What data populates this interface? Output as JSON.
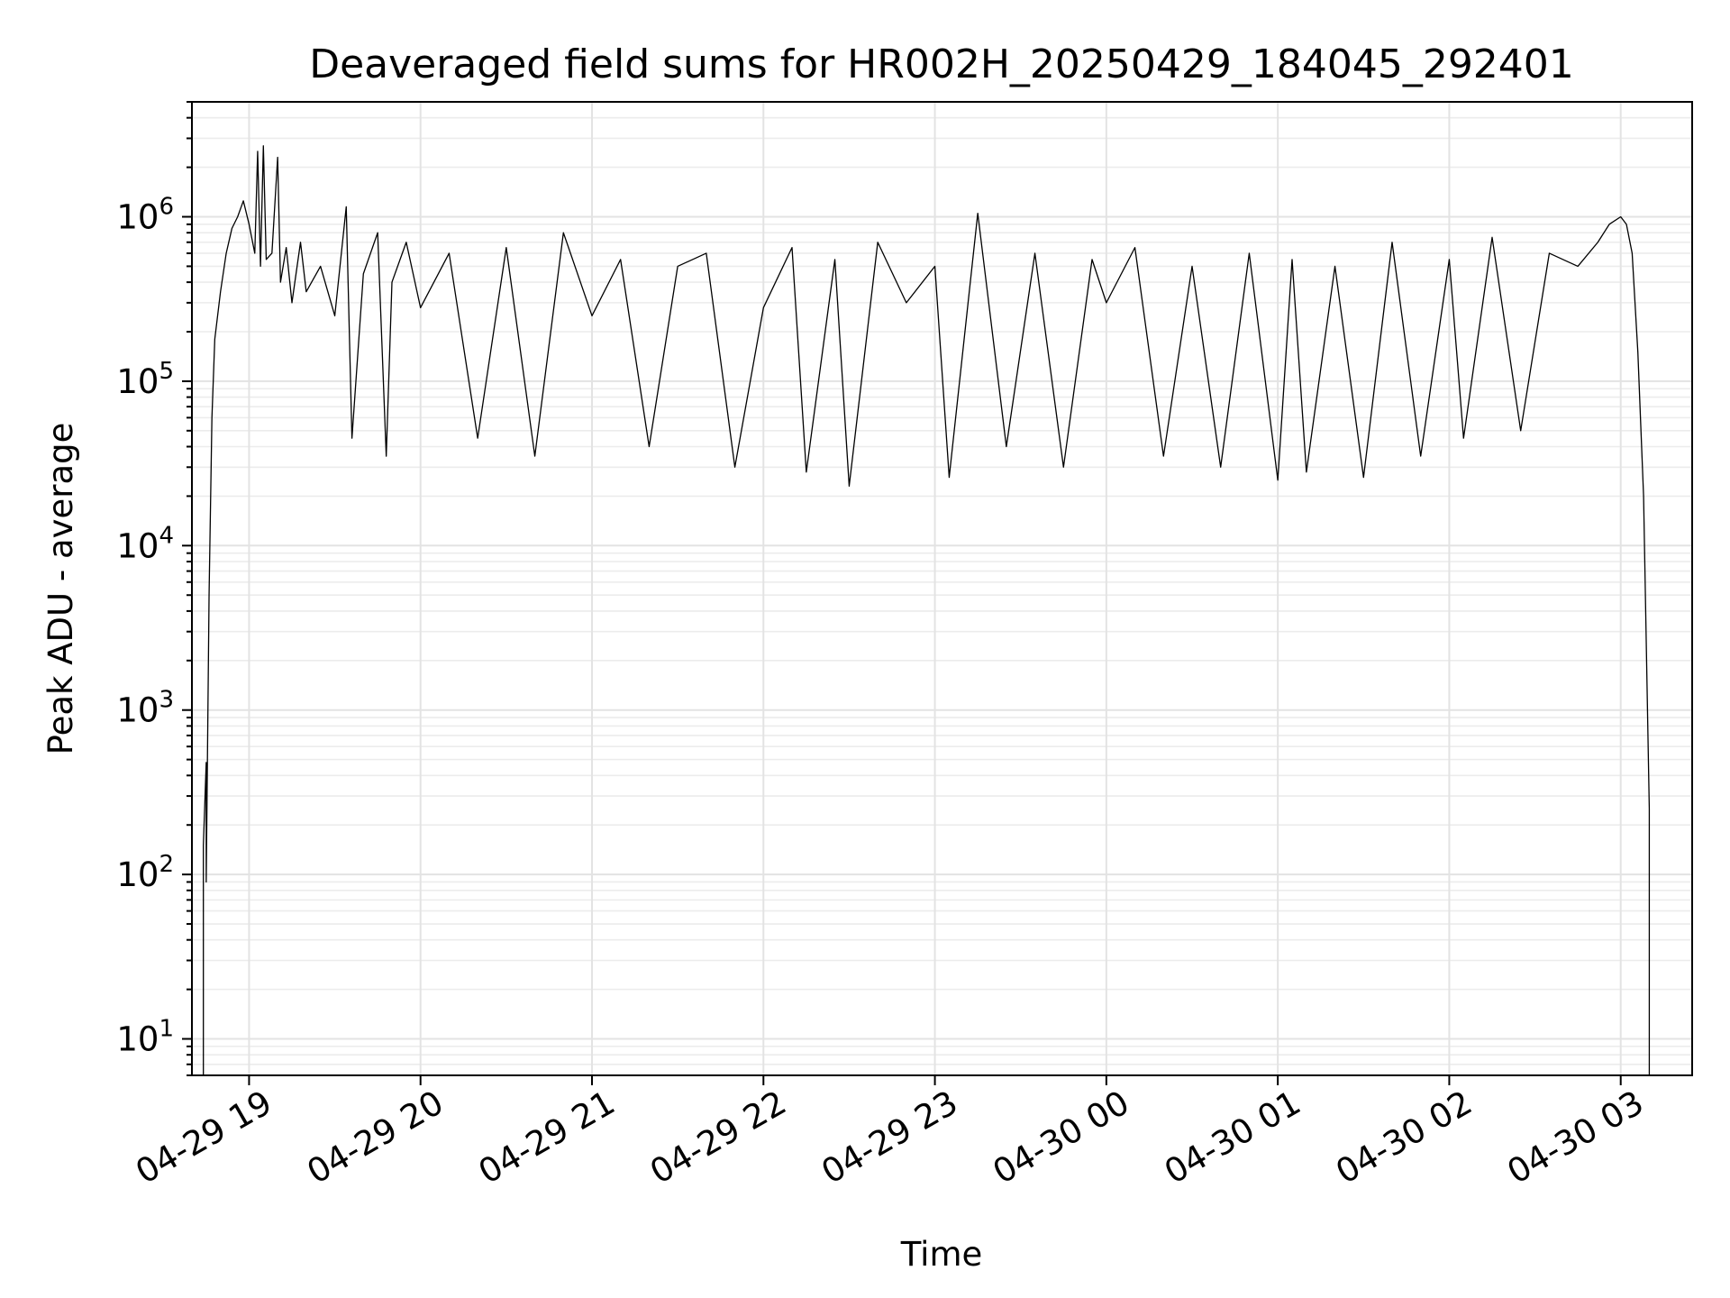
{
  "chart_data": {
    "type": "line",
    "title": "Deaveraged field sums for HR002H_20250429_184045_292401",
    "xlabel": "Time",
    "ylabel": "Peak ADU - average",
    "yscale": "log",
    "ylim": [
      6,
      5000000
    ],
    "xlim": [
      "2025-04-29 18:40",
      "2025-04-30 03:25"
    ],
    "grid": true,
    "grid_minor": true,
    "x_ticks": [
      {
        "value": "2025-04-29 19:00",
        "label": "04-29 19"
      },
      {
        "value": "2025-04-29 20:00",
        "label": "04-29 20"
      },
      {
        "value": "2025-04-29 21:00",
        "label": "04-29 21"
      },
      {
        "value": "2025-04-29 22:00",
        "label": "04-29 22"
      },
      {
        "value": "2025-04-29 23:00",
        "label": "04-29 23"
      },
      {
        "value": "2025-04-30 00:00",
        "label": "04-30 00"
      },
      {
        "value": "2025-04-30 01:00",
        "label": "04-30 01"
      },
      {
        "value": "2025-04-30 02:00",
        "label": "04-30 02"
      },
      {
        "value": "2025-04-30 03:00",
        "label": "04-30 03"
      }
    ],
    "y_ticks": [
      {
        "value": 10,
        "base": "10",
        "exp": "1"
      },
      {
        "value": 100,
        "base": "10",
        "exp": "2"
      },
      {
        "value": 1000,
        "base": "10",
        "exp": "3"
      },
      {
        "value": 10000,
        "base": "10",
        "exp": "4"
      },
      {
        "value": 100000,
        "base": "10",
        "exp": "5"
      },
      {
        "value": 1000000,
        "base": "10",
        "exp": "6"
      }
    ],
    "series": [
      {
        "color": "#000000",
        "points": [
          [
            "2025-04-29 18:44",
            6
          ],
          [
            "2025-04-29 18:44",
            150
          ],
          [
            "2025-04-29 18:45",
            480
          ],
          [
            "2025-04-29 18:45",
            90
          ],
          [
            "2025-04-29 18:46",
            5000
          ],
          [
            "2025-04-29 18:47",
            60000
          ],
          [
            "2025-04-29 18:48",
            180000
          ],
          [
            "2025-04-29 18:50",
            350000
          ],
          [
            "2025-04-29 18:52",
            600000
          ],
          [
            "2025-04-29 18:54",
            850000
          ],
          [
            "2025-04-29 18:56",
            1000000
          ],
          [
            "2025-04-29 18:58",
            1250000
          ],
          [
            "2025-04-29 19:00",
            900000
          ],
          [
            "2025-04-29 19:02",
            600000
          ],
          [
            "2025-04-29 19:03",
            2500000
          ],
          [
            "2025-04-29 19:04",
            500000
          ],
          [
            "2025-04-29 19:05",
            2700000
          ],
          [
            "2025-04-29 19:06",
            550000
          ],
          [
            "2025-04-29 19:08",
            600000
          ],
          [
            "2025-04-29 19:10",
            2300000
          ],
          [
            "2025-04-29 19:11",
            400000
          ],
          [
            "2025-04-29 19:13",
            650000
          ],
          [
            "2025-04-29 19:15",
            300000
          ],
          [
            "2025-04-29 19:18",
            700000
          ],
          [
            "2025-04-29 19:20",
            350000
          ],
          [
            "2025-04-29 19:25",
            500000
          ],
          [
            "2025-04-29 19:30",
            250000
          ],
          [
            "2025-04-29 19:34",
            1150000
          ],
          [
            "2025-04-29 19:36",
            45000
          ],
          [
            "2025-04-29 19:40",
            450000
          ],
          [
            "2025-04-29 19:45",
            800000
          ],
          [
            "2025-04-29 19:48",
            35000
          ],
          [
            "2025-04-29 19:50",
            400000
          ],
          [
            "2025-04-29 19:55",
            700000
          ],
          [
            "2025-04-29 20:00",
            280000
          ],
          [
            "2025-04-29 20:10",
            600000
          ],
          [
            "2025-04-29 20:20",
            45000
          ],
          [
            "2025-04-29 20:30",
            650000
          ],
          [
            "2025-04-29 20:40",
            35000
          ],
          [
            "2025-04-29 20:50",
            800000
          ],
          [
            "2025-04-29 21:00",
            250000
          ],
          [
            "2025-04-29 21:10",
            550000
          ],
          [
            "2025-04-29 21:20",
            40000
          ],
          [
            "2025-04-29 21:30",
            500000
          ],
          [
            "2025-04-29 21:40",
            600000
          ],
          [
            "2025-04-29 21:50",
            30000
          ],
          [
            "2025-04-29 22:00",
            280000
          ],
          [
            "2025-04-29 22:10",
            650000
          ],
          [
            "2025-04-29 22:15",
            28000
          ],
          [
            "2025-04-29 22:25",
            550000
          ],
          [
            "2025-04-29 22:30",
            23000
          ],
          [
            "2025-04-29 22:40",
            700000
          ],
          [
            "2025-04-29 22:50",
            300000
          ],
          [
            "2025-04-29 23:00",
            500000
          ],
          [
            "2025-04-29 23:05",
            26000
          ],
          [
            "2025-04-29 23:15",
            1050000
          ],
          [
            "2025-04-29 23:25",
            40000
          ],
          [
            "2025-04-29 23:35",
            600000
          ],
          [
            "2025-04-29 23:45",
            30000
          ],
          [
            "2025-04-29 23:55",
            550000
          ],
          [
            "2025-04-30 00:00",
            300000
          ],
          [
            "2025-04-30 00:10",
            650000
          ],
          [
            "2025-04-30 00:20",
            35000
          ],
          [
            "2025-04-30 00:30",
            500000
          ],
          [
            "2025-04-30 00:40",
            30000
          ],
          [
            "2025-04-30 00:50",
            600000
          ],
          [
            "2025-04-30 01:00",
            25000
          ],
          [
            "2025-04-30 01:05",
            550000
          ],
          [
            "2025-04-30 01:10",
            28000
          ],
          [
            "2025-04-30 01:20",
            500000
          ],
          [
            "2025-04-30 01:30",
            26000
          ],
          [
            "2025-04-30 01:40",
            700000
          ],
          [
            "2025-04-30 01:50",
            35000
          ],
          [
            "2025-04-30 02:00",
            550000
          ],
          [
            "2025-04-30 02:05",
            45000
          ],
          [
            "2025-04-30 02:15",
            750000
          ],
          [
            "2025-04-30 02:25",
            50000
          ],
          [
            "2025-04-30 02:35",
            600000
          ],
          [
            "2025-04-30 02:45",
            500000
          ],
          [
            "2025-04-30 02:52",
            700000
          ],
          [
            "2025-04-30 02:56",
            900000
          ],
          [
            "2025-04-30 03:00",
            1000000
          ],
          [
            "2025-04-30 03:02",
            900000
          ],
          [
            "2025-04-30 03:04",
            600000
          ],
          [
            "2025-04-30 03:06",
            150000
          ],
          [
            "2025-04-30 03:08",
            20000
          ],
          [
            "2025-04-30 03:10",
            250
          ],
          [
            "2025-04-30 03:10",
            6
          ]
        ]
      }
    ]
  }
}
